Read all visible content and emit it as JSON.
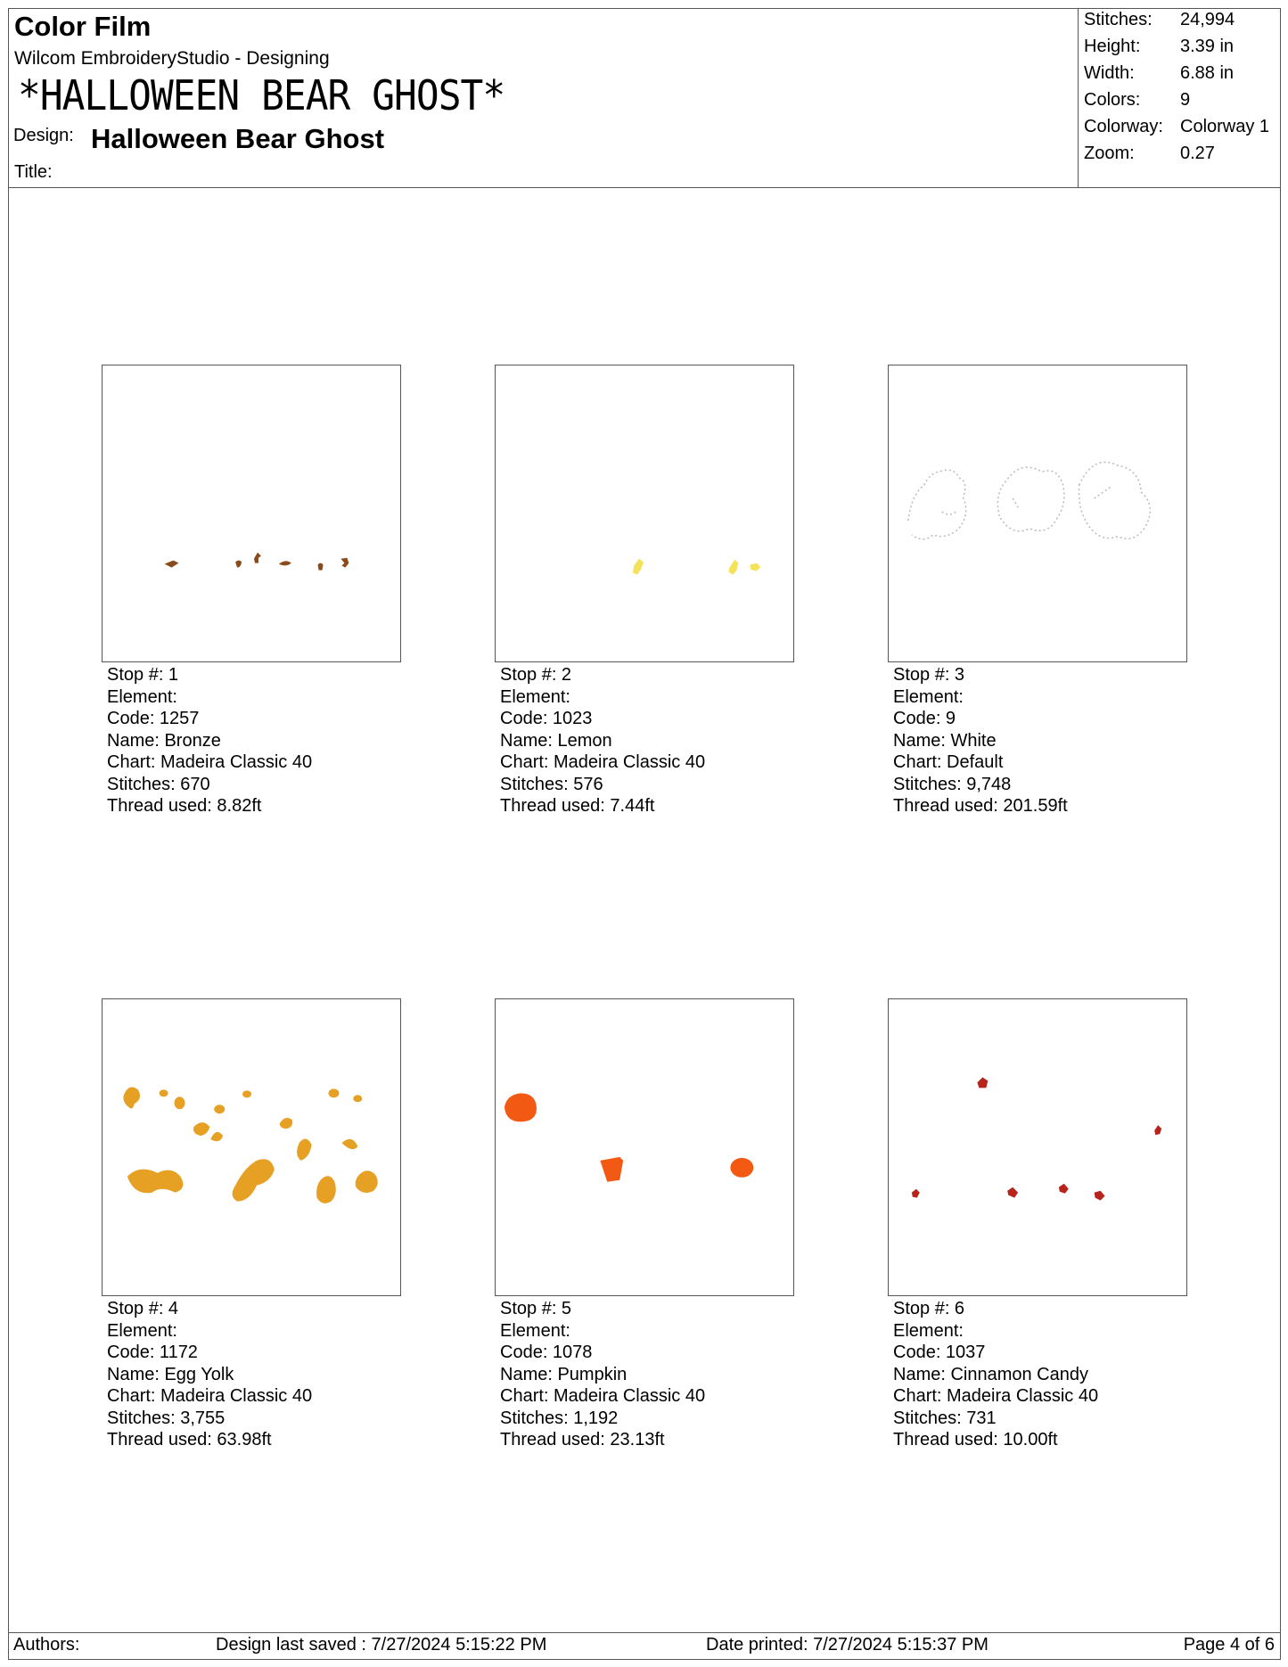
{
  "header": {
    "film_title": "Color Film",
    "software": "Wilcom EmbroideryStudio - Designing",
    "big_name": "*HALLOWEEN BEAR GHOST*",
    "design_label": "Design:",
    "design_value": "Halloween Bear Ghost",
    "title_label": "Title:"
  },
  "stats": [
    {
      "label": "Stitches:",
      "value": "24,994"
    },
    {
      "label": "Height:",
      "value": "3.39 in"
    },
    {
      "label": "Width:",
      "value": "6.88 in"
    },
    {
      "label": "Colors:",
      "value": "9"
    },
    {
      "label": "Colorway:",
      "value": "Colorway 1"
    },
    {
      "label": "Zoom:",
      "value": "0.27"
    }
  ],
  "stops": [
    {
      "stop": "Stop #:  1",
      "element": "Element:",
      "code": "Code: 1257",
      "name": "Name: Bronze",
      "chart": "Chart: Madeira Classic 40",
      "stitches": "Stitches: 670",
      "thread": "Thread used: 8.82ft",
      "color": "#8a4a1c"
    },
    {
      "stop": "Stop #:  2",
      "element": "Element:",
      "code": "Code: 1023",
      "name": "Name: Lemon",
      "chart": "Chart: Madeira Classic 40",
      "stitches": "Stitches: 576",
      "thread": "Thread used: 7.44ft",
      "color": "#f3e25a"
    },
    {
      "stop": "Stop #:  3",
      "element": "Element:",
      "code": "Code: 9",
      "name": "Name: White",
      "chart": "Chart: Default",
      "stitches": "Stitches: 9,748",
      "thread": "Thread used: 201.59ft",
      "color": "#bdbdbd"
    },
    {
      "stop": "Stop #:  4",
      "element": "Element:",
      "code": "Code: 1172",
      "name": "Name: Egg Yolk",
      "chart": "Chart: Madeira Classic 40",
      "stitches": "Stitches: 3,755",
      "thread": "Thread used: 63.98ft",
      "color": "#e6a024"
    },
    {
      "stop": "Stop #:  5",
      "element": "Element:",
      "code": "Code: 1078",
      "name": "Name: Pumpkin",
      "chart": "Chart: Madeira Classic 40",
      "stitches": "Stitches: 1,192",
      "thread": "Thread used: 23.13ft",
      "color": "#f25a14"
    },
    {
      "stop": "Stop #:  6",
      "element": "Element:",
      "code": "Code: 1037",
      "name": "Name: Cinnamon Candy",
      "chart": "Chart: Madeira Classic 40",
      "stitches": "Stitches: 731",
      "thread": "Thread used: 10.00ft",
      "color": "#b8241c"
    }
  ],
  "footer": {
    "authors": "Authors:",
    "saved": "Design last saved : 7/27/2024 5:15:22 PM",
    "printed": "Date printed: 7/27/2024 5:15:37 PM",
    "page": "Page 4 of 6"
  }
}
